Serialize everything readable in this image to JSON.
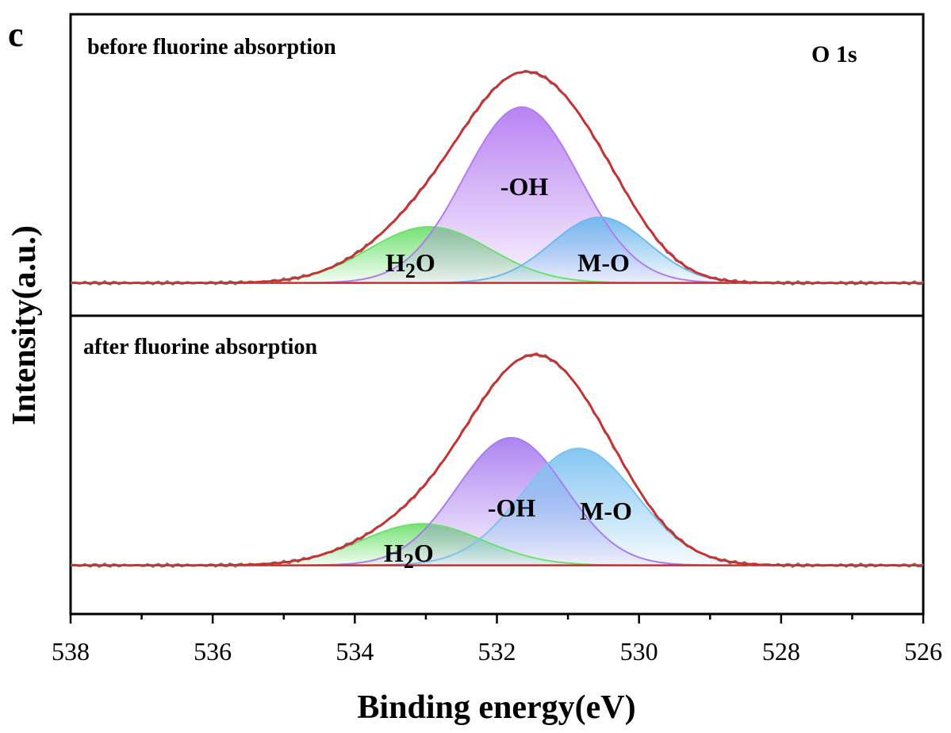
{
  "panel_letter": "c",
  "corner_label": "O 1s",
  "chart_data": {
    "type": "area",
    "xlabel": "Binding energy(eV)",
    "ylabel": "Intensity(a.u.)",
    "xlim": [
      538,
      526
    ],
    "x_reversed": true,
    "xticks": [
      538,
      536,
      534,
      532,
      530,
      528,
      526
    ],
    "grid": false,
    "panels": [
      {
        "title": "before fluorine absorption",
        "baseline": 0.02,
        "envelope_color": "#d42a2a",
        "components": [
          {
            "name": "H2O",
            "label_base": "H",
            "label_sub": "2",
            "label_tail": "O",
            "center": 532.95,
            "height": 0.265,
            "fwhm": 2.0,
            "color": "#6ee06e"
          },
          {
            "name": "-OH",
            "label": "-OH",
            "center": 531.65,
            "height": 0.83,
            "fwhm": 1.9,
            "color": "#b57cf2"
          },
          {
            "name": "M-O",
            "label": "M-O",
            "center": 530.55,
            "height": 0.31,
            "fwhm": 1.6,
            "color": "#6fb9ee"
          }
        ]
      },
      {
        "title": "after fluorine absorption",
        "baseline": 0.02,
        "envelope_color": "#d42a2a",
        "components": [
          {
            "name": "H2O",
            "label_base": "H",
            "label_sub": "2",
            "label_tail": "O",
            "center": 533.05,
            "height": 0.195,
            "fwhm": 2.0,
            "color": "#6ee06e"
          },
          {
            "name": "-OH",
            "label": "-OH",
            "center": 531.8,
            "height": 0.6,
            "fwhm": 1.8,
            "color": "#a97ef0"
          },
          {
            "name": "M-O",
            "label": "M-O",
            "center": 530.85,
            "height": 0.55,
            "fwhm": 1.9,
            "color": "#7ec3f0"
          }
        ]
      }
    ]
  }
}
